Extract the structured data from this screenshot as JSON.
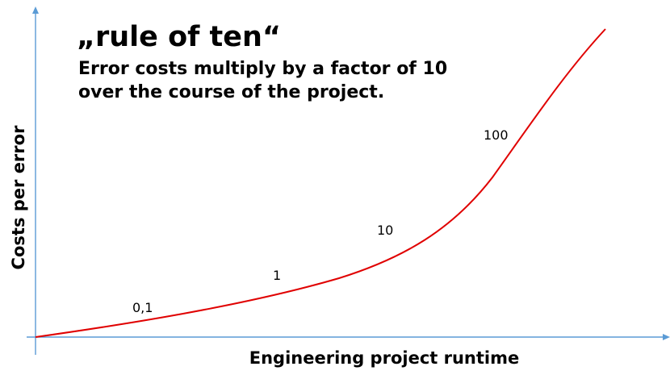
{
  "title": "„rule of ten“",
  "subtitle_lines": [
    "Error costs multiply by a factor of 10",
    "over the course of the project."
  ],
  "x_axis_label": "Engineering project runtime",
  "y_axis_label": "Costs per error",
  "curve_labels": [
    "0,1",
    "1",
    "10",
    "100"
  ],
  "colors": {
    "axis": "#5b9bd5",
    "curve": "#e00000",
    "text": "#000000"
  }
}
